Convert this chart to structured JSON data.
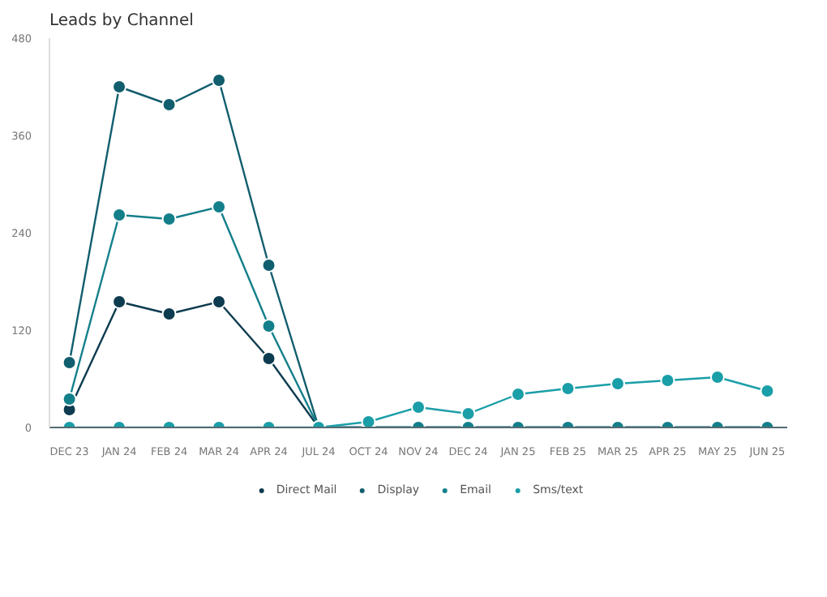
{
  "chart_data": {
    "type": "line",
    "title": "Leads by Channel",
    "categories": [
      "DEC 23",
      "JAN 24",
      "FEB 24",
      "MAR 24",
      "APR 24",
      "JUL 24",
      "OCT 24",
      "NOV 24",
      "DEC 24",
      "JAN 25",
      "FEB 25",
      "MAR 25",
      "APR 25",
      "MAY 25",
      "JUN 25"
    ],
    "series": [
      {
        "name": "Direct Mail",
        "color": "#0d3b4f",
        "values": [
          22,
          155,
          140,
          155,
          85,
          0,
          0,
          0,
          0,
          0,
          0,
          0,
          0,
          0,
          0
        ]
      },
      {
        "name": "Display",
        "color": "#115e6e",
        "values": [
          80,
          420,
          398,
          428,
          200,
          0,
          0,
          0,
          0,
          0,
          0,
          0,
          0,
          0,
          0
        ]
      },
      {
        "name": "Email",
        "color": "#137f8a",
        "values": [
          35,
          262,
          257,
          272,
          125,
          0,
          0,
          0,
          0,
          0,
          0,
          0,
          0,
          0,
          0
        ]
      },
      {
        "name": "Sms/text",
        "color": "#1a9ea8",
        "values": [
          0,
          0,
          0,
          0,
          0,
          0,
          7,
          25,
          17,
          41,
          48,
          54,
          58,
          62,
          45
        ]
      }
    ],
    "ylim": [
      0,
      480
    ],
    "yticks": [
      0,
      120,
      240,
      360,
      480
    ],
    "grid": false,
    "legend": "bottom",
    "marker": "circle",
    "line_style": "solid"
  }
}
